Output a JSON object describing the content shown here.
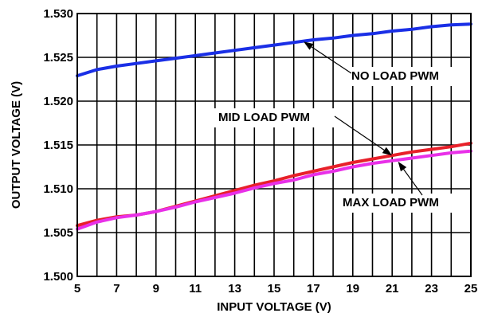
{
  "chart_data": {
    "type": "line",
    "title": "",
    "xlabel": "INPUT VOLTAGE (V)",
    "ylabel": "OUTPUT VOLTAGE (V)",
    "xlim": [
      5,
      25
    ],
    "ylim": [
      1.5,
      1.53
    ],
    "x_ticks": [
      5,
      7,
      9,
      11,
      13,
      15,
      17,
      19,
      21,
      23,
      25
    ],
    "x_tick_labels": [
      "5",
      "7",
      "9",
      "11",
      "13",
      "15",
      "17",
      "19",
      "21",
      "23",
      "25"
    ],
    "y_ticks": [
      1.5,
      1.505,
      1.51,
      1.515,
      1.52,
      1.525,
      1.53
    ],
    "y_tick_labels": [
      "1.500",
      "1.505",
      "1.510",
      "1.515",
      "1.520",
      "1.525",
      "1.530"
    ],
    "x_minor_gridlines": [
      6,
      8,
      10,
      12,
      14,
      16,
      18,
      20,
      22,
      24
    ],
    "grid": true,
    "legend": "none",
    "series": [
      {
        "name": "NO LOAD PWM",
        "color": "#1a2fe6",
        "x": [
          5,
          6,
          7,
          8,
          9,
          10,
          11,
          12,
          13,
          14,
          15,
          16,
          17,
          18,
          19,
          20,
          21,
          22,
          23,
          24,
          25
        ],
        "values": [
          1.5229,
          1.5236,
          1.524,
          1.5243,
          1.5246,
          1.5249,
          1.5252,
          1.5255,
          1.5258,
          1.5261,
          1.5264,
          1.5267,
          1.527,
          1.5272,
          1.5275,
          1.5277,
          1.528,
          1.5282,
          1.5285,
          1.5287,
          1.5288
        ]
      },
      {
        "name": "MID LOAD PWM",
        "color": "#e8202a",
        "x": [
          5,
          6,
          7,
          8,
          9,
          10,
          11,
          12,
          13,
          14,
          15,
          16,
          17,
          18,
          19,
          20,
          21,
          22,
          23,
          24,
          25
        ],
        "values": [
          1.5058,
          1.5064,
          1.5068,
          1.507,
          1.5074,
          1.508,
          1.5086,
          1.5092,
          1.5098,
          1.5104,
          1.5109,
          1.5115,
          1.512,
          1.5125,
          1.513,
          1.5134,
          1.5138,
          1.5142,
          1.5145,
          1.5148,
          1.5152
        ]
      },
      {
        "name": "MAX LOAD PWM",
        "color": "#e830e8",
        "x": [
          5,
          6,
          7,
          8,
          9,
          10,
          11,
          12,
          13,
          14,
          15,
          16,
          17,
          18,
          19,
          20,
          21,
          22,
          23,
          24,
          25
        ],
        "values": [
          1.5054,
          1.5062,
          1.5067,
          1.507,
          1.5074,
          1.5079,
          1.5085,
          1.509,
          1.5095,
          1.5101,
          1.5106,
          1.511,
          1.5116,
          1.512,
          1.5125,
          1.5129,
          1.5132,
          1.5135,
          1.5138,
          1.5141,
          1.5143
        ]
      }
    ],
    "annotations": [
      {
        "text": "NO LOAD PWM",
        "series": "NO LOAD PWM",
        "point_x": 16.5,
        "point_y": 1.5268
      },
      {
        "text": "MID LOAD PWM",
        "series": "MID LOAD PWM",
        "point_x": 21.0,
        "point_y": 1.5138
      },
      {
        "text": "MAX LOAD PWM",
        "series": "MAX LOAD PWM",
        "point_x": 21.3,
        "point_y": 1.5131
      }
    ]
  }
}
